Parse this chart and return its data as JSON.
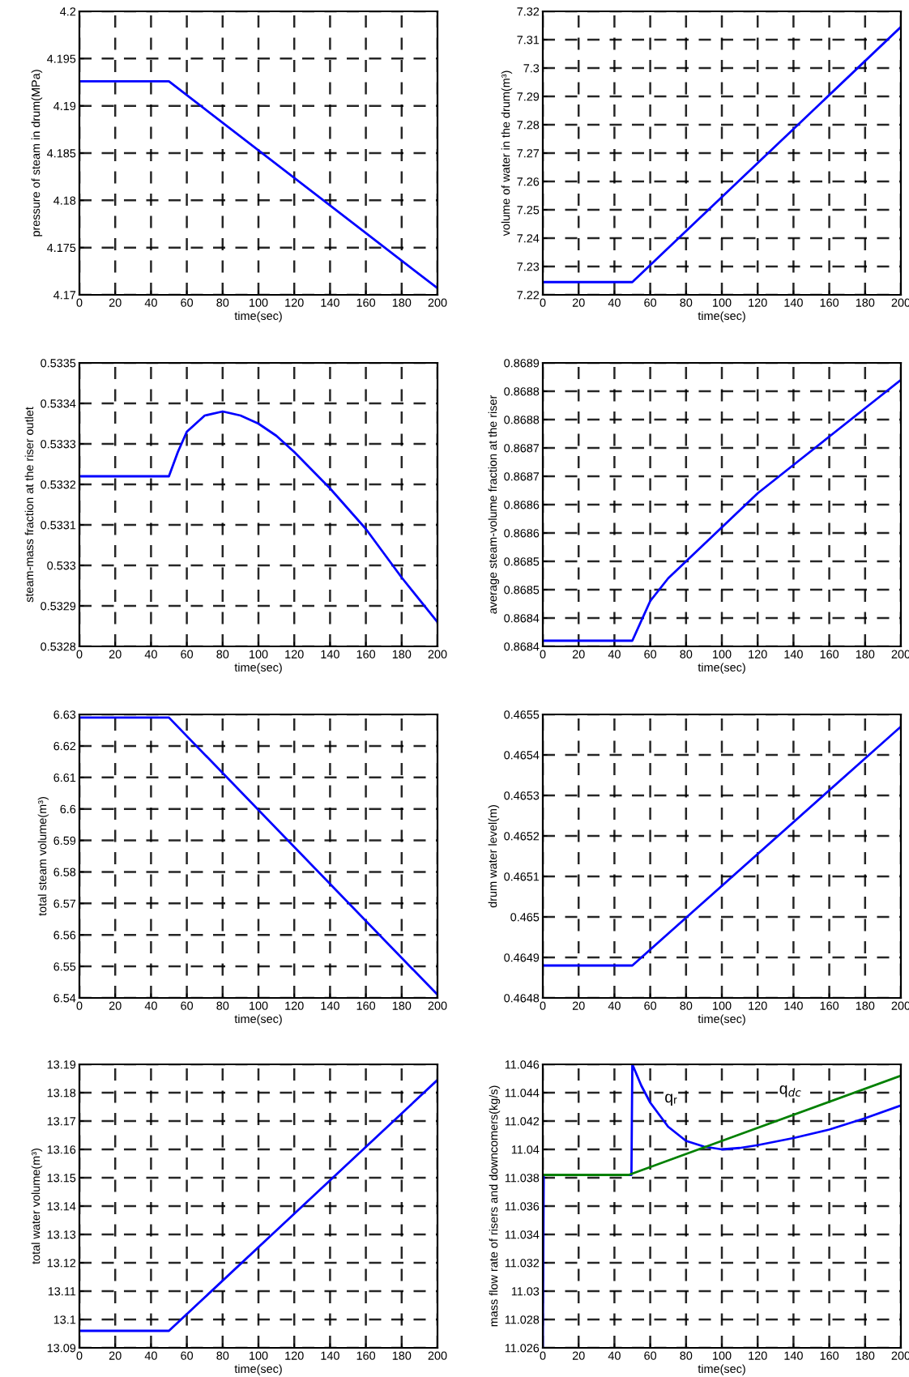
{
  "chart_data": [
    {
      "type": "line",
      "xlabel": "time(sec)",
      "ylabel": "pressure of steam in drum(MPa)",
      "xlim": [
        0,
        200
      ],
      "xticks": [
        0,
        20,
        40,
        60,
        80,
        100,
        120,
        140,
        160,
        180,
        200
      ],
      "ylim": [
        4.17,
        4.2
      ],
      "yticks": [
        4.17,
        4.175,
        4.18,
        4.185,
        4.19,
        4.195,
        4.2
      ],
      "grid": true,
      "line_style": "solid",
      "series": [
        {
          "color": "#0000ff",
          "x": [
            0,
            50,
            200
          ],
          "values": [
            4.1926,
            4.1926,
            4.1707
          ]
        }
      ]
    },
    {
      "type": "line",
      "xlabel": "time(sec)",
      "ylabel": "volume of water in the drum(m³)",
      "xlim": [
        0,
        200
      ],
      "xticks": [
        0,
        20,
        40,
        60,
        80,
        100,
        120,
        140,
        160,
        180,
        200
      ],
      "ylim": [
        7.22,
        7.32
      ],
      "yticks": [
        7.22,
        7.23,
        7.24,
        7.25,
        7.26,
        7.27,
        7.28,
        7.29,
        7.3,
        7.31,
        7.32
      ],
      "grid": true,
      "line_style": "solid",
      "series": [
        {
          "color": "#0000ff",
          "x": [
            0,
            50,
            200
          ],
          "values": [
            7.2245,
            7.2245,
            7.3145
          ]
        }
      ]
    },
    {
      "type": "line",
      "xlabel": "time(sec)",
      "ylabel": "steam-mass fraction at the riser outlet",
      "xlim": [
        0,
        200
      ],
      "xticks": [
        0,
        20,
        40,
        60,
        80,
        100,
        120,
        140,
        160,
        180,
        200
      ],
      "ylim": [
        0.5328,
        0.5335
      ],
      "yticks": [
        0.5328,
        0.5329,
        0.533,
        0.5331,
        0.5332,
        0.5333,
        0.5334,
        0.5335
      ],
      "grid": true,
      "line_style": "solid",
      "series": [
        {
          "color": "#0000ff",
          "x": [
            0,
            50,
            55,
            60,
            70,
            80,
            90,
            100,
            110,
            120,
            140,
            160,
            180,
            200
          ],
          "values": [
            0.53322,
            0.53322,
            0.53328,
            0.53333,
            0.53337,
            0.53338,
            0.53337,
            0.53335,
            0.53332,
            0.53328,
            0.53319,
            0.53309,
            0.53297,
            0.53286
          ]
        }
      ]
    },
    {
      "type": "line",
      "xlabel": "time(sec)",
      "ylabel": "average steam-volume fraction at the riser",
      "xlim": [
        0,
        200
      ],
      "xticks": [
        0,
        20,
        40,
        60,
        80,
        100,
        120,
        140,
        160,
        180,
        200
      ],
      "ylim": [
        0.8684,
        0.8689
      ],
      "yticks": [
        {
          "value": 0.8684,
          "label": "0.8684"
        },
        {
          "value": 0.86845,
          "label": "0.8684"
        },
        {
          "value": 0.8685,
          "label": "0.8685"
        },
        {
          "value": 0.86855,
          "label": "0.8685"
        },
        {
          "value": 0.8686,
          "label": "0.8686"
        },
        {
          "value": 0.86865,
          "label": "0.8686"
        },
        {
          "value": 0.8687,
          "label": "0.8687"
        },
        {
          "value": 0.86875,
          "label": "0.8687"
        },
        {
          "value": 0.8688,
          "label": "0.8688"
        },
        {
          "value": 0.86885,
          "label": "0.8688"
        },
        {
          "value": 0.8689,
          "label": "0.8689"
        }
      ],
      "grid": true,
      "line_style": "solid",
      "series": [
        {
          "color": "#0000ff",
          "x": [
            0,
            50,
            60,
            70,
            80,
            100,
            120,
            140,
            160,
            180,
            200
          ],
          "values": [
            0.86841,
            0.86841,
            0.86848,
            0.86852,
            0.86855,
            0.86861,
            0.86867,
            0.86872,
            0.86877,
            0.86882,
            0.86887
          ]
        }
      ]
    },
    {
      "type": "line",
      "xlabel": "time(sec)",
      "ylabel": "total steam volume(m³)",
      "xlim": [
        0,
        200
      ],
      "xticks": [
        0,
        20,
        40,
        60,
        80,
        100,
        120,
        140,
        160,
        180,
        200
      ],
      "ylim": [
        6.54,
        6.63
      ],
      "yticks": [
        6.54,
        6.55,
        6.56,
        6.57,
        6.58,
        6.59,
        6.6,
        6.61,
        6.62,
        6.63
      ],
      "grid": true,
      "line_style": "solid",
      "series": [
        {
          "color": "#0000ff",
          "x": [
            0,
            50,
            200
          ],
          "values": [
            6.629,
            6.629,
            6.541
          ]
        }
      ]
    },
    {
      "type": "line",
      "xlabel": "time(sec)",
      "ylabel": "drum water level(m)",
      "xlim": [
        0,
        200
      ],
      "xticks": [
        0,
        20,
        40,
        60,
        80,
        100,
        120,
        140,
        160,
        180,
        200
      ],
      "ylim": [
        0.4648,
        0.4655
      ],
      "yticks": [
        0.4648,
        0.4649,
        0.465,
        0.4651,
        0.4652,
        0.4653,
        0.4654,
        0.4655
      ],
      "grid": true,
      "line_style": "solid",
      "series": [
        {
          "color": "#0000ff",
          "x": [
            0,
            50,
            200
          ],
          "values": [
            0.46488,
            0.46488,
            0.46547
          ]
        }
      ]
    },
    {
      "type": "line",
      "xlabel": "time(sec)",
      "ylabel": "total water volume(m³)",
      "xlim": [
        0,
        200
      ],
      "xticks": [
        0,
        20,
        40,
        60,
        80,
        100,
        120,
        140,
        160,
        180,
        200
      ],
      "ylim": [
        13.09,
        13.19
      ],
      "yticks": [
        13.09,
        13.1,
        13.11,
        13.12,
        13.13,
        13.14,
        13.15,
        13.16,
        13.17,
        13.18,
        13.19
      ],
      "grid": true,
      "line_style": "solid",
      "series": [
        {
          "color": "#0000ff",
          "x": [
            0,
            50,
            200
          ],
          "values": [
            13.096,
            13.096,
            13.1845
          ]
        }
      ]
    },
    {
      "type": "line",
      "xlabel": "time(sec)",
      "ylabel": "mass flow rate of risers and downcomers(kg/s)",
      "xlim": [
        0,
        200
      ],
      "xticks": [
        0,
        20,
        40,
        60,
        80,
        100,
        120,
        140,
        160,
        180,
        200
      ],
      "ylim": [
        11.026,
        11.046
      ],
      "yticks": [
        11.026,
        11.028,
        11.03,
        11.032,
        11.034,
        11.036,
        11.038,
        11.04,
        11.042,
        11.044,
        11.046
      ],
      "grid": true,
      "line_style": "solid",
      "annotations": [
        "qᵣ",
        "q$_{dc}$"
      ],
      "series": [
        {
          "color": "#0000ff",
          "x": [
            0,
            0.5,
            49.5,
            50,
            55,
            60,
            70,
            80,
            90,
            100,
            110,
            120,
            140,
            160,
            180,
            200
          ],
          "values": [
            11.026,
            11.0382,
            11.0382,
            11.046,
            11.0445,
            11.0433,
            11.0416,
            11.0406,
            11.0402,
            11.04,
            11.0401,
            11.0403,
            11.0408,
            11.0414,
            11.0422,
            11.0431
          ]
        },
        {
          "color": "#008000",
          "x": [
            0,
            48,
            100,
            200
          ],
          "values": [
            11.0382,
            11.0382,
            11.0406,
            11.0452
          ]
        }
      ]
    }
  ]
}
